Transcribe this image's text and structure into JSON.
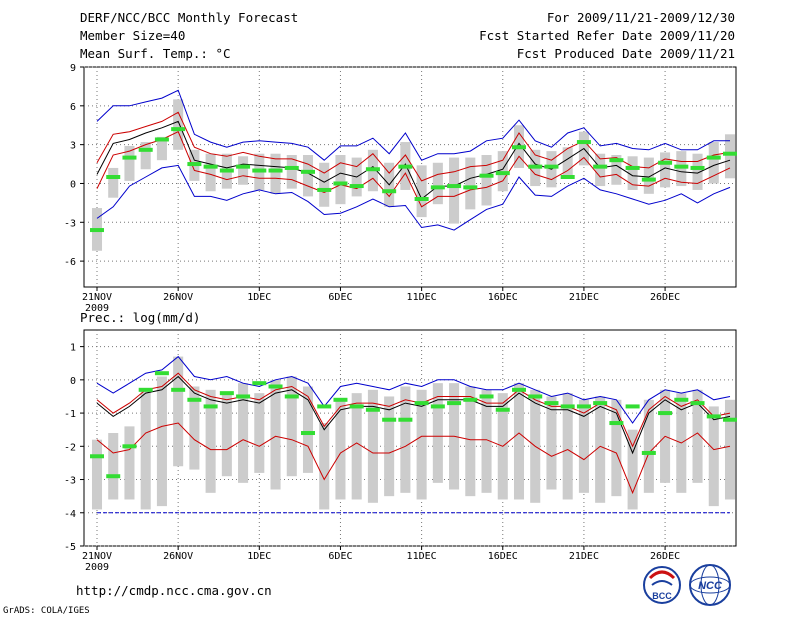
{
  "header": {
    "left": [
      "DERF/NCC/BCC Monthly Forecast",
      "Member Size=40",
      "Mean Surf. Temp.: °C"
    ],
    "right": [
      "For 2009/11/21-2009/12/30",
      "Fcst Started Refer Date 2009/11/20",
      "Fcst Produced Date 2009/11/21"
    ]
  },
  "footer": {
    "url": "http://cmdp.ncc.cma.gov.cn",
    "credit": "GrADS: COLA/IGES",
    "logo_bcc": "BCC",
    "logo_ncc": "NCC"
  },
  "colors": {
    "mean": "#000000",
    "spread": "#cc0000",
    "range": "#0000cc",
    "obs": "#33dd33",
    "box": "#cccccc"
  },
  "chart_data": [
    {
      "type": "box",
      "title": "Mean Surf. Temp.: °C",
      "x_ticks": [
        "21NOV",
        "26NOV",
        "1DEC",
        "6DEC",
        "11DEC",
        "16DEC",
        "21DEC",
        "26DEC"
      ],
      "x_year": "2009",
      "ylim": [
        -8,
        9
      ],
      "yticks": [
        -6,
        -3,
        0,
        3,
        6,
        9
      ],
      "days": 40,
      "series": [
        {
          "name": "max",
          "values": [
            4.8,
            6,
            6,
            6.3,
            6.6,
            7.2,
            3.8,
            3.2,
            2.8,
            3.2,
            3.3,
            3.2,
            3.1,
            2.8,
            1.8,
            2.9,
            2.9,
            3.5,
            2.3,
            3.9,
            1.8,
            2.3,
            2.3,
            2.5,
            3.3,
            3.5,
            4.9,
            3.3,
            2.8,
            3.9,
            4.3,
            2.9,
            3.1,
            2.7,
            2.6,
            3.1,
            2.6,
            2.6,
            3.3,
            3.3
          ]
        },
        {
          "name": "upper",
          "values": [
            1.6,
            3.8,
            4,
            4.4,
            4.8,
            5.5,
            2.8,
            2.3,
            2.1,
            2.4,
            2.1,
            1.9,
            1.9,
            1.5,
            0.8,
            1.6,
            1.3,
            2.3,
            0.8,
            2.2,
            0.2,
            0.7,
            0.9,
            1.3,
            1.4,
            1.8,
            3.9,
            2.2,
            1.8,
            2.7,
            3.3,
            1.9,
            2,
            1.3,
            1.2,
            1.9,
            1.7,
            1.7,
            2.2,
            2.4
          ]
        },
        {
          "name": "mean",
          "values": [
            0.7,
            3.1,
            3.4,
            3.9,
            4.3,
            4.8,
            1.8,
            1.5,
            1.2,
            1.5,
            1.4,
            1.3,
            1.2,
            0.8,
            0.1,
            0.8,
            0.5,
            1.3,
            -0.1,
            1.5,
            -1.2,
            -0.2,
            -0.2,
            0.4,
            0.7,
            1.1,
            3.1,
            1.5,
            1.1,
            1.9,
            2.7,
            1.2,
            1.4,
            0.6,
            0.5,
            1.2,
            0.9,
            0.8,
            1.4,
            1.8
          ]
        },
        {
          "name": "lower",
          "values": [
            -0.4,
            2.2,
            2.5,
            3,
            3.4,
            4,
            1,
            0.7,
            0.3,
            0.6,
            0.4,
            0.4,
            0.3,
            -0.2,
            -0.7,
            -0.1,
            -0.4,
            0.4,
            -1,
            0.8,
            -1.8,
            -1,
            -1,
            -0.5,
            -0.3,
            0.2,
            2.1,
            0.7,
            0.3,
            1,
            2,
            0.5,
            0.7,
            -0.1,
            -0.2,
            0.4,
            0.1,
            0,
            0.6,
            1.2
          ]
        },
        {
          "name": "min",
          "values": [
            -2.7,
            -1.8,
            -0.2,
            0.5,
            1.2,
            1.4,
            -1,
            -1,
            -1.3,
            -0.8,
            -0.5,
            -0.8,
            -0.7,
            -1.4,
            -2.4,
            -2.3,
            -1.8,
            -1.2,
            -1.8,
            -1.7,
            -3.4,
            -3.2,
            -3.6,
            -2.8,
            -2,
            -1.6,
            0.5,
            -0.9,
            -1,
            -0.2,
            0.4,
            -0.5,
            -0.8,
            -1.2,
            -1.6,
            -1.3,
            -0.8,
            -1.5,
            -0.8,
            -0.3
          ]
        },
        {
          "name": "box_top",
          "values": [
            -1.9,
            1.2,
            2.9,
            3.2,
            3.6,
            6.5,
            2.6,
            2.3,
            2.3,
            2.1,
            2.3,
            2.3,
            2.2,
            2.2,
            1.6,
            2.2,
            2,
            2.6,
            1.6,
            3.2,
            1.4,
            1.6,
            2,
            2,
            2.2,
            2.5,
            4.5,
            2.6,
            2.5,
            2.8,
            4,
            2.3,
            2.2,
            2.1,
            2,
            2.4,
            2.5,
            2.3,
            3.2,
            3.8
          ]
        },
        {
          "name": "box_bottom",
          "values": [
            -5.2,
            -1.1,
            0.2,
            1.1,
            1.8,
            2.6,
            0.2,
            -0.6,
            -0.4,
            -0.1,
            -0.5,
            -0.8,
            -0.4,
            -1,
            -1.8,
            -1.6,
            -1,
            -0.6,
            -1.8,
            -0.5,
            -2.6,
            -1.6,
            -3.1,
            -2,
            -1.7,
            -0.6,
            1.2,
            -0.2,
            -0.3,
            0.4,
            1.4,
            -0.2,
            -0.1,
            -0.5,
            -0.8,
            -0.3,
            -0.2,
            -0.5,
            0,
            0.4
          ]
        },
        {
          "name": "observed",
          "values": [
            -3.6,
            0.5,
            2,
            2.6,
            3.4,
            4.2,
            1.5,
            1.3,
            1,
            1.3,
            1,
            1,
            1.2,
            0.9,
            -0.5,
            0,
            -0.2,
            1.1,
            -0.6,
            1.3,
            -1.2,
            -0.3,
            -0.2,
            -0.3,
            0.6,
            0.8,
            2.8,
            1.3,
            1.3,
            0.5,
            3.2,
            1.3,
            1.8,
            1.2,
            0.3,
            1.6,
            1.3,
            1.2,
            2,
            2.3
          ]
        }
      ]
    },
    {
      "type": "box",
      "title": "Prec.: log(mm/d)",
      "x_ticks": [
        "21NOV",
        "26NOV",
        "1DEC",
        "6DEC",
        "11DEC",
        "16DEC",
        "21DEC",
        "26DEC"
      ],
      "x_year": "2009",
      "ylim": [
        -5,
        1.5
      ],
      "yticks": [
        -5,
        -4,
        -3,
        -2,
        -1,
        0,
        1
      ],
      "days": 40,
      "series": [
        {
          "name": "max",
          "values": [
            -0.1,
            -0.4,
            -0.1,
            0.2,
            0.3,
            0.7,
            0.1,
            0,
            0.1,
            -0.1,
            -0.2,
            0,
            0.1,
            -0.1,
            -0.8,
            -0.2,
            -0.1,
            -0.2,
            -0.3,
            -0.1,
            -0.2,
            0,
            0,
            -0.2,
            -0.3,
            -0.3,
            -0.1,
            -0.3,
            -0.5,
            -0.4,
            -0.6,
            -0.5,
            -0.6,
            -1.3,
            -0.6,
            -0.3,
            -0.4,
            -0.3,
            -0.6,
            -0.5
          ]
        },
        {
          "name": "upper",
          "values": [
            -0.6,
            -1,
            -0.7,
            -0.3,
            -0.2,
            0.2,
            -0.3,
            -0.5,
            -0.6,
            -0.5,
            -0.6,
            -0.3,
            -0.2,
            -0.5,
            -1.4,
            -0.8,
            -0.7,
            -0.7,
            -0.8,
            -0.6,
            -0.7,
            -0.5,
            -0.5,
            -0.5,
            -0.7,
            -0.7,
            -0.3,
            -0.6,
            -0.8,
            -0.8,
            -1,
            -0.7,
            -0.9,
            -2,
            -0.9,
            -0.5,
            -0.8,
            -0.6,
            -1.1,
            -1
          ]
        },
        {
          "name": "mean",
          "values": [
            -0.7,
            -1.1,
            -0.8,
            -0.4,
            -0.3,
            0.1,
            -0.4,
            -0.6,
            -0.7,
            -0.6,
            -0.7,
            -0.4,
            -0.3,
            -0.6,
            -1.5,
            -0.9,
            -0.8,
            -0.8,
            -0.9,
            -0.7,
            -0.8,
            -0.6,
            -0.6,
            -0.6,
            -0.8,
            -0.8,
            -0.4,
            -0.7,
            -0.9,
            -0.9,
            -1.1,
            -0.8,
            -1,
            -2.2,
            -1,
            -0.6,
            -0.9,
            -0.7,
            -1.2,
            -1.1
          ]
        },
        {
          "name": "lower",
          "values": [
            -1.8,
            -2.2,
            -2.1,
            -1.6,
            -1.4,
            -1.3,
            -1.8,
            -2.1,
            -2.1,
            -1.8,
            -2,
            -1.7,
            -1.8,
            -2,
            -3,
            -2.2,
            -1.9,
            -2.2,
            -2.2,
            -2,
            -1.7,
            -1.7,
            -1.7,
            -1.8,
            -1.8,
            -2,
            -1.6,
            -2,
            -2.3,
            -2.1,
            -2.4,
            -2,
            -2.2,
            -3.4,
            -2.2,
            -1.7,
            -1.9,
            -1.6,
            -2.1,
            -2
          ]
        },
        {
          "name": "min",
          "values": [
            -4,
            -4,
            -4,
            -4,
            -4,
            -4,
            -4,
            -4,
            -4,
            -4,
            -4,
            -4,
            -4,
            -4,
            -4,
            -4,
            -4,
            -4,
            -4,
            -4,
            -4,
            -4,
            -4,
            -4,
            -4,
            -4,
            -4,
            -4,
            -4,
            -4,
            -4,
            -4,
            -4,
            -4,
            -4,
            -4,
            -4,
            -4,
            -4,
            -4
          ]
        },
        {
          "name": "box_top",
          "values": [
            -1.8,
            -1.6,
            -1.4,
            -0.3,
            0.1,
            0.7,
            -0.2,
            -0.3,
            -0.4,
            -0.1,
            -0.4,
            0,
            0.1,
            -0.2,
            -1.3,
            -0.6,
            -0.4,
            -0.3,
            -0.5,
            -0.2,
            -0.3,
            -0.1,
            -0.1,
            -0.2,
            -0.3,
            -0.4,
            -0.1,
            -0.3,
            -0.5,
            -0.4,
            -0.6,
            -0.5,
            -0.6,
            -1.5,
            -0.6,
            -0.3,
            -0.4,
            -0.3,
            -0.8,
            -0.6
          ]
        },
        {
          "name": "box_bottom",
          "values": [
            -3.9,
            -3.6,
            -3.6,
            -3.9,
            -3.8,
            -2.6,
            -2.7,
            -3.4,
            -2.9,
            -3.1,
            -2.8,
            -3.3,
            -2.9,
            -2.8,
            -3.9,
            -3.6,
            -3.6,
            -3.7,
            -3.5,
            -3.4,
            -3.6,
            -3.1,
            -3.3,
            -3.5,
            -3.4,
            -3.6,
            -3.6,
            -3.7,
            -3.3,
            -3.6,
            -3.4,
            -3.7,
            -3.5,
            -3.9,
            -3.4,
            -3.1,
            -3.4,
            -3.1,
            -3.8,
            -3.6
          ]
        },
        {
          "name": "observed",
          "values": [
            -2.3,
            -2.9,
            -2,
            -0.3,
            0.2,
            -0.3,
            -0.6,
            -0.8,
            -0.4,
            -0.5,
            -0.1,
            -0.2,
            -0.5,
            -1.6,
            -0.8,
            -0.6,
            -0.8,
            -0.9,
            -1.2,
            -1.2,
            -0.7,
            -0.8,
            -0.7,
            -0.6,
            -0.5,
            -0.9,
            -0.3,
            -0.5,
            -0.7,
            -0.8,
            -0.8,
            -0.7,
            -1.3,
            -0.8,
            -2.2,
            -1,
            -0.6,
            -0.7,
            -1.1,
            -1.2
          ]
        }
      ]
    }
  ]
}
